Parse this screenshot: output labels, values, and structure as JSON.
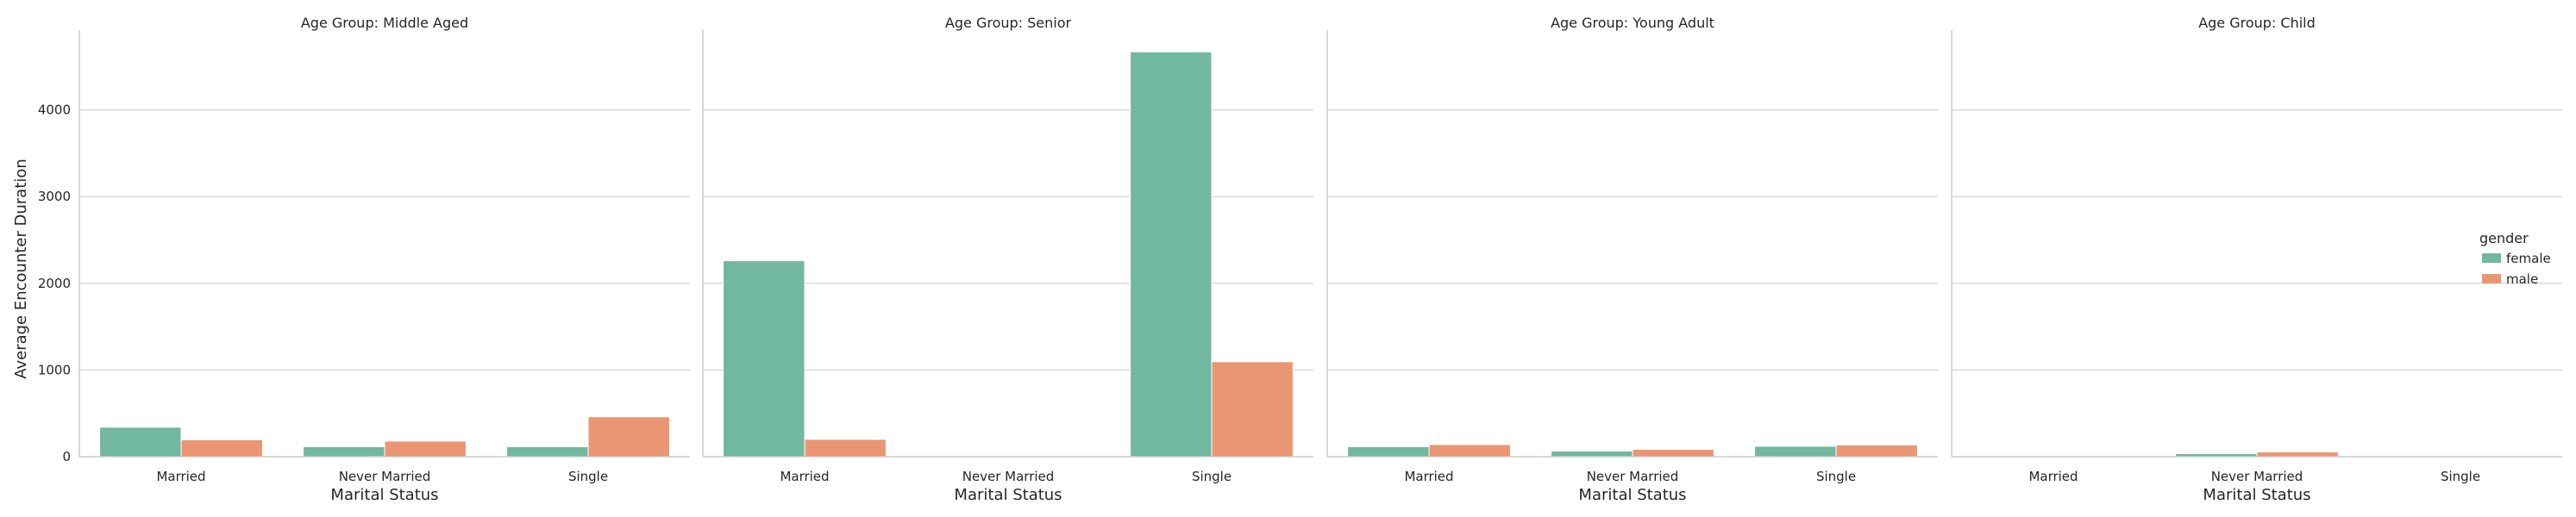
{
  "chart_data": {
    "type": "bar",
    "ylabel": "Average Encounter Duration",
    "xlabel": "Marital Status",
    "ylim": [
      0,
      4900
    ],
    "yticks": [
      0,
      1000,
      2000,
      3000,
      4000
    ],
    "grid": "horizontal",
    "legend": {
      "title": "gender",
      "placement": "right",
      "entries": [
        {
          "label": "female",
          "color": "#72b7a0"
        },
        {
          "label": "male",
          "color": "#ea9673"
        }
      ]
    },
    "categories": [
      "Married",
      "Never Married",
      "Single"
    ],
    "panels": [
      {
        "title": "Age Group: Middle Aged",
        "series": [
          {
            "name": "female",
            "values": [
              340,
              115,
              115
            ]
          },
          {
            "name": "male",
            "values": [
              195,
              180,
              460
            ]
          }
        ]
      },
      {
        "title": "Age Group: Senior",
        "series": [
          {
            "name": "female",
            "values": [
              2260,
              0,
              4670
            ]
          },
          {
            "name": "male",
            "values": [
              200,
              0,
              1095
            ]
          }
        ]
      },
      {
        "title": "Age Group: Young Adult",
        "series": [
          {
            "name": "female",
            "values": [
              115,
              65,
              120
            ]
          },
          {
            "name": "male",
            "values": [
              140,
              85,
              135
            ]
          }
        ]
      },
      {
        "title": "Age Group: Child",
        "series": [
          {
            "name": "female",
            "values": [
              0,
              35,
              0
            ]
          },
          {
            "name": "male",
            "values": [
              0,
              55,
              0
            ]
          }
        ]
      }
    ]
  }
}
